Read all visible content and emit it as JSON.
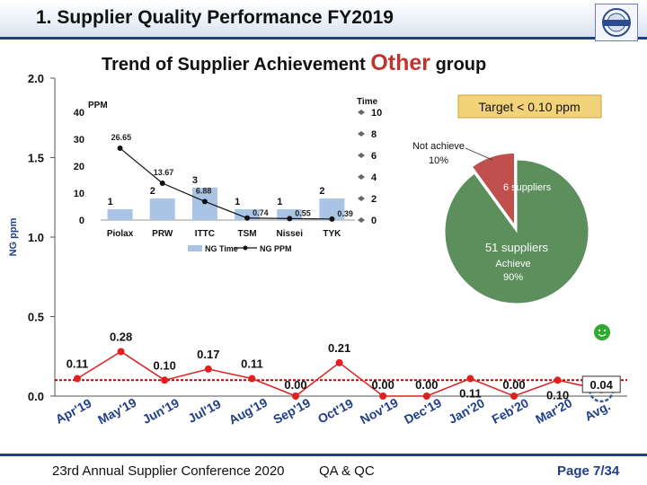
{
  "header": {
    "title": "1. Supplier Quality Performance FY2019"
  },
  "subtitle": {
    "pre": "Trend of Supplier Achievement",
    "highlight": "Other",
    "post": "group"
  },
  "footer": {
    "conference": "23rd Annual Supplier Conference 2020",
    "dept": "QA & QC",
    "page": "Page 7/34"
  },
  "chart_data": [
    {
      "type": "line",
      "ylabel": "NG ppm",
      "ylim": [
        0,
        2.0
      ],
      "yticks": [
        "0.0",
        "0.5",
        "1.0",
        "1.5",
        "2.0"
      ],
      "categories": [
        "Apr'19",
        "May'19",
        "Jun'19",
        "Jul'19",
        "Aug'19",
        "Sep'19",
        "Oct'19",
        "Nov'19",
        "Dec'19",
        "Jan'20",
        "Feb'20",
        "Mar'20",
        "Avg."
      ],
      "values": [
        0.11,
        0.28,
        0.1,
        0.17,
        0.11,
        0.0,
        0.21,
        0.0,
        0.0,
        0.11,
        0.0,
        0.1,
        0.04
      ],
      "value_labels": [
        "0.11",
        "0.28",
        "0.10",
        "0.17",
        "0.11",
        "0.00",
        "0.21",
        "0.00",
        "0.00",
        "0.11",
        "0.00",
        "0.10",
        "0.04"
      ],
      "target": 0.1,
      "colors": {
        "line": "#e02020",
        "target": "#c00000",
        "avg_circle": "#3a5a9a",
        "smiley": "#2eaa2e"
      }
    },
    {
      "type": "bar",
      "categories": [
        "Piolax",
        "PRW",
        "ITTC",
        "TSM",
        "Nissei",
        "TYK"
      ],
      "ylabel_left": "PPM",
      "ylabel_right": "Time",
      "left_ticks": [
        "0",
        "10",
        "20",
        "30",
        "40"
      ],
      "right_ticks": [
        "0",
        "2",
        "4",
        "6",
        "8",
        "10"
      ],
      "series": [
        {
          "name": "NG Time",
          "values": [
            1,
            2,
            3,
            1,
            1,
            2
          ],
          "labels": [
            "1",
            "2",
            "3",
            "1",
            "1",
            "2"
          ],
          "color": "#a9c4e4"
        },
        {
          "name": "NG PPM",
          "values": [
            26.65,
            13.67,
            6.88,
            0.74,
            0.55,
            0.39
          ],
          "labels": [
            "26.65",
            "13.67",
            "6.88",
            "0.74",
            "0.55",
            "0.39"
          ],
          "color": "#111111"
        }
      ]
    },
    {
      "type": "pie",
      "target_label": "Target < 0.10 ppm",
      "slices": [
        {
          "label": "51  suppliers",
          "sublabel": "Achieve",
          "pct_label": "90%",
          "value": 90,
          "color": "#5c8f5c"
        },
        {
          "label": "6 suppliers",
          "sublabel": "Not achieve",
          "pct_label": "10%",
          "value": 10,
          "color": "#c0504d"
        }
      ]
    }
  ]
}
